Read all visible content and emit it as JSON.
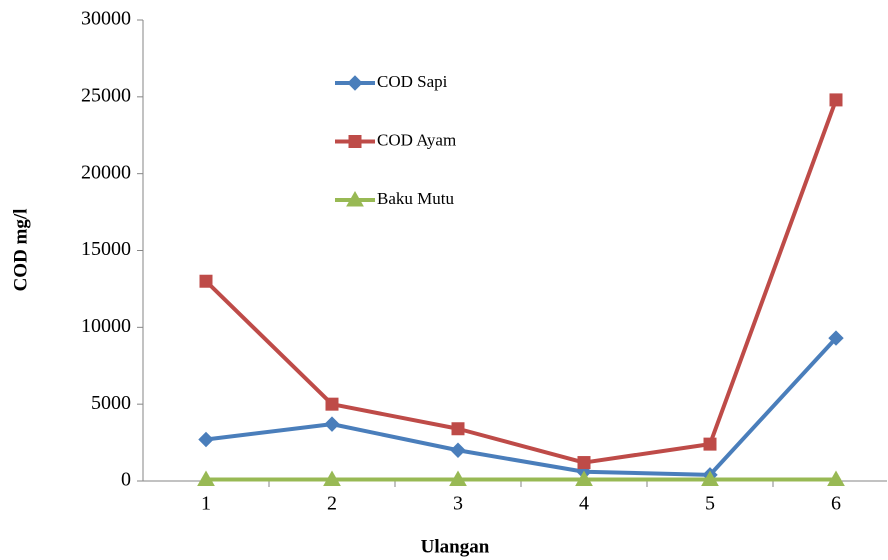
{
  "chart_data": {
    "type": "line",
    "x_label": "Ulangan",
    "y_label": "COD mg/l",
    "categories": [
      "1",
      "2",
      "3",
      "4",
      "5",
      "6"
    ],
    "series": [
      {
        "name": "COD Sapi",
        "color": "#4a7ebb",
        "marker": "diamond",
        "values": [
          2700,
          3700,
          2000,
          600,
          400,
          9300
        ]
      },
      {
        "name": "COD Ayam",
        "color": "#be4b48",
        "marker": "square",
        "values": [
          13000,
          5000,
          3400,
          1200,
          2400,
          24800
        ]
      },
      {
        "name": "Baku Mutu",
        "color": "#98b954",
        "marker": "triangle",
        "values": [
          100,
          100,
          100,
          100,
          100,
          100
        ]
      }
    ],
    "ylim": [
      0,
      30000
    ],
    "yticks": [
      0,
      5000,
      10000,
      15000,
      20000,
      25000,
      30000
    ],
    "grid": false
  }
}
